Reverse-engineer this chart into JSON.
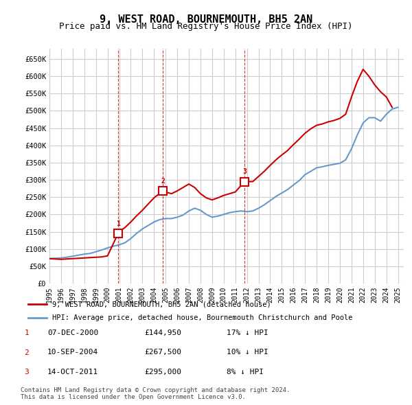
{
  "title": "9, WEST ROAD, BOURNEMOUTH, BH5 2AN",
  "subtitle": "Price paid vs. HM Land Registry's House Price Index (HPI)",
  "title_fontsize": 12,
  "subtitle_fontsize": 10,
  "hpi_years": [
    1995,
    1995.5,
    1996,
    1996.5,
    1997,
    1997.5,
    1998,
    1998.5,
    1999,
    1999.5,
    2000,
    2000.5,
    2001,
    2001.5,
    2002,
    2002.5,
    2003,
    2003.5,
    2004,
    2004.5,
    2005,
    2005.5,
    2006,
    2006.5,
    2007,
    2007.5,
    2008,
    2008.5,
    2009,
    2009.5,
    2010,
    2010.5,
    2011,
    2011.5,
    2012,
    2012.5,
    2013,
    2013.5,
    2014,
    2014.5,
    2015,
    2015.5,
    2016,
    2016.5,
    2017,
    2017.5,
    2018,
    2018.5,
    2019,
    2019.5,
    2020,
    2020.5,
    2021,
    2021.5,
    2022,
    2022.5,
    2023,
    2023.5,
    2024,
    2024.5,
    2025
  ],
  "hpi_values": [
    72000,
    73000,
    74000,
    76000,
    79000,
    82000,
    85000,
    87000,
    92000,
    97000,
    103000,
    108000,
    112000,
    118000,
    130000,
    145000,
    158000,
    168000,
    178000,
    185000,
    188000,
    188000,
    192000,
    198000,
    210000,
    218000,
    212000,
    200000,
    192000,
    195000,
    200000,
    205000,
    208000,
    210000,
    208000,
    210000,
    218000,
    228000,
    240000,
    252000,
    262000,
    272000,
    285000,
    298000,
    315000,
    325000,
    335000,
    338000,
    342000,
    345000,
    348000,
    358000,
    390000,
    430000,
    465000,
    480000,
    480000,
    470000,
    490000,
    505000,
    510000
  ],
  "red_segments": [
    {
      "years": [
        1995,
        1995.5,
        1996,
        1996.5,
        1997,
        1997.5,
        1998,
        1998.5,
        1999,
        1999.5,
        2000,
        2000.917
      ],
      "values": [
        72000,
        71000,
        70000,
        71000,
        72000,
        73000,
        74000,
        75000,
        76000,
        77000,
        80000,
        144950
      ]
    },
    {
      "years": [
        2000.917,
        2001,
        2001.5,
        2002,
        2002.5,
        2003,
        2003.5,
        2004,
        2004.75
      ],
      "values": [
        144950,
        150000,
        162000,
        178000,
        196000,
        212000,
        230000,
        248000,
        267500
      ]
    },
    {
      "years": [
        2004.75,
        2005,
        2005.5,
        2006,
        2006.5,
        2007,
        2007.5,
        2008,
        2008.5,
        2009,
        2009.5,
        2010,
        2010.5,
        2011,
        2011.792
      ],
      "values": [
        267500,
        265000,
        260000,
        268000,
        278000,
        288000,
        278000,
        260000,
        248000,
        242000,
        248000,
        255000,
        260000,
        265000,
        295000
      ]
    },
    {
      "years": [
        2011.792,
        2012,
        2012.5,
        2013,
        2013.5,
        2014,
        2014.5,
        2015,
        2015.5,
        2016,
        2016.5,
        2017,
        2017.5,
        2018,
        2018.5,
        2019,
        2019.5,
        2020,
        2020.5,
        2021,
        2021.5,
        2022,
        2022.5,
        2023,
        2023.5,
        2024,
        2024.5
      ],
      "values": [
        295000,
        295000,
        295000,
        310000,
        325000,
        342000,
        358000,
        372000,
        385000,
        402000,
        418000,
        435000,
        448000,
        458000,
        462000,
        468000,
        472000,
        478000,
        490000,
        540000,
        585000,
        620000,
        600000,
        575000,
        555000,
        540000,
        510000
      ]
    }
  ],
  "transactions": [
    {
      "label": "1",
      "year": 2000.917,
      "value": 144950,
      "date": "07-DEC-2000",
      "price": "£144,950",
      "pct": "17%",
      "dir": "↓"
    },
    {
      "label": "2",
      "year": 2004.75,
      "value": 267500,
      "date": "10-SEP-2004",
      "price": "£267,500",
      "pct": "10%",
      "dir": "↓"
    },
    {
      "label": "3",
      "year": 2011.792,
      "value": 295000,
      "date": "14-OCT-2011",
      "price": "£295,000",
      "pct": "8%",
      "dir": "↓"
    }
  ],
  "xlim": [
    1995,
    2025.5
  ],
  "ylim": [
    0,
    680000
  ],
  "yticks": [
    0,
    50000,
    100000,
    150000,
    200000,
    250000,
    300000,
    350000,
    400000,
    450000,
    500000,
    550000,
    600000,
    650000
  ],
  "ytick_labels": [
    "£0",
    "£50K",
    "£100K",
    "£150K",
    "£200K",
    "£250K",
    "£300K",
    "£350K",
    "£400K",
    "£450K",
    "£500K",
    "£550K",
    "£600K",
    "£650K"
  ],
  "xticks": [
    1995,
    1996,
    1997,
    1998,
    1999,
    2000,
    2001,
    2002,
    2003,
    2004,
    2005,
    2006,
    2007,
    2008,
    2009,
    2010,
    2011,
    2012,
    2013,
    2014,
    2015,
    2016,
    2017,
    2018,
    2019,
    2020,
    2021,
    2022,
    2023,
    2024,
    2025
  ],
  "hpi_color": "#6699cc",
  "red_color": "#cc0000",
  "marker_color": "#cc0000",
  "dashed_color": "#cc0000",
  "grid_color": "#cccccc",
  "bg_color": "#ffffff",
  "plot_bg_color": "#ffffff",
  "legend_label_red": "9, WEST ROAD, BOURNEMOUTH, BH5 2AN (detached house)",
  "legend_label_blue": "HPI: Average price, detached house, Bournemouth Christchurch and Poole",
  "footer": "Contains HM Land Registry data © Crown copyright and database right 2024.\nThis data is licensed under the Open Government Licence v3.0."
}
